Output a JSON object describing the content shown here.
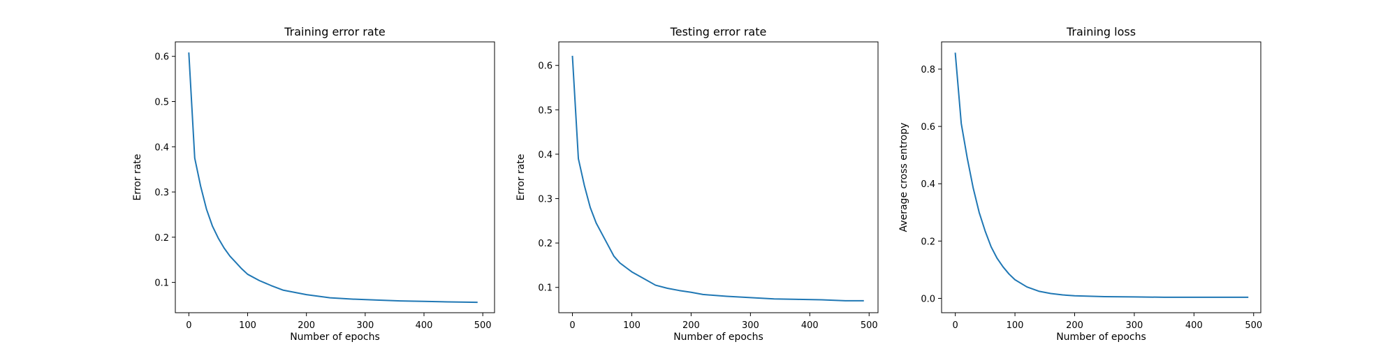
{
  "chart_data": [
    {
      "type": "line",
      "title": "Training error rate",
      "xlabel": "Number of epochs",
      "ylabel": "Error rate",
      "xlim": [
        -23,
        520
      ],
      "ylim": [
        0.033,
        0.632
      ],
      "xticks": [
        0,
        100,
        200,
        300,
        400,
        500
      ],
      "yticks": [
        0.1,
        0.2,
        0.3,
        0.4,
        0.5,
        0.6
      ],
      "xtick_labels": [
        "0",
        "100",
        "200",
        "300",
        "400",
        "500"
      ],
      "ytick_labels": [
        "0.1",
        "0.2",
        "0.3",
        "0.4",
        "0.5",
        "0.6"
      ],
      "grid": false,
      "color": "#1f77b4",
      "series": [
        {
          "x": [
            0,
            10,
            20,
            30,
            40,
            50,
            60,
            70,
            80,
            90,
            100,
            120,
            140,
            160,
            180,
            200,
            240,
            280,
            320,
            360,
            400,
            440,
            490
          ],
          "y": [
            0.607,
            0.375,
            0.313,
            0.262,
            0.225,
            0.198,
            0.176,
            0.158,
            0.144,
            0.13,
            0.118,
            0.104,
            0.093,
            0.083,
            0.078,
            0.073,
            0.066,
            0.063,
            0.061,
            0.059,
            0.058,
            0.057,
            0.056
          ]
        }
      ]
    },
    {
      "type": "line",
      "title": "Testing error rate",
      "xlabel": "Number of epochs",
      "ylabel": "Error rate",
      "xlim": [
        -23,
        515
      ],
      "ylim": [
        0.043,
        0.653
      ],
      "xticks": [
        0,
        100,
        200,
        300,
        400,
        500
      ],
      "yticks": [
        0.1,
        0.2,
        0.3,
        0.4,
        0.5,
        0.6
      ],
      "xtick_labels": [
        "0",
        "100",
        "200",
        "300",
        "400",
        "500"
      ],
      "ytick_labels": [
        "0.1",
        "0.2",
        "0.3",
        "0.4",
        "0.5",
        "0.6"
      ],
      "grid": false,
      "color": "#1f77b4",
      "series": [
        {
          "x": [
            0,
            10,
            20,
            30,
            40,
            50,
            60,
            70,
            80,
            90,
            100,
            120,
            140,
            160,
            180,
            200,
            220,
            260,
            300,
            340,
            380,
            420,
            460,
            490
          ],
          "y": [
            0.62,
            0.39,
            0.33,
            0.28,
            0.245,
            0.22,
            0.195,
            0.17,
            0.155,
            0.145,
            0.135,
            0.12,
            0.105,
            0.098,
            0.093,
            0.089,
            0.084,
            0.08,
            0.077,
            0.074,
            0.073,
            0.072,
            0.07,
            0.07
          ]
        }
      ]
    },
    {
      "type": "line",
      "title": "Training loss",
      "xlabel": "Number of epochs",
      "ylabel": "Average cross entropy",
      "xlim": [
        -23,
        512
      ],
      "ylim": [
        -0.05,
        0.895
      ],
      "xticks": [
        0,
        100,
        200,
        300,
        400,
        500
      ],
      "yticks": [
        0.0,
        0.2,
        0.4,
        0.6,
        0.8
      ],
      "xtick_labels": [
        "0",
        "100",
        "200",
        "300",
        "400",
        "500"
      ],
      "ytick_labels": [
        "0.0",
        "0.2",
        "0.4",
        "0.6",
        "0.8"
      ],
      "grid": false,
      "color": "#1f77b4",
      "series": [
        {
          "x": [
            0,
            10,
            20,
            30,
            40,
            50,
            60,
            70,
            80,
            90,
            100,
            120,
            140,
            160,
            180,
            200,
            250,
            300,
            350,
            400,
            450,
            490
          ],
          "y": [
            0.855,
            0.61,
            0.49,
            0.385,
            0.3,
            0.235,
            0.18,
            0.14,
            0.11,
            0.085,
            0.065,
            0.04,
            0.025,
            0.017,
            0.012,
            0.009,
            0.006,
            0.005,
            0.004,
            0.004,
            0.004,
            0.004
          ]
        }
      ]
    }
  ]
}
